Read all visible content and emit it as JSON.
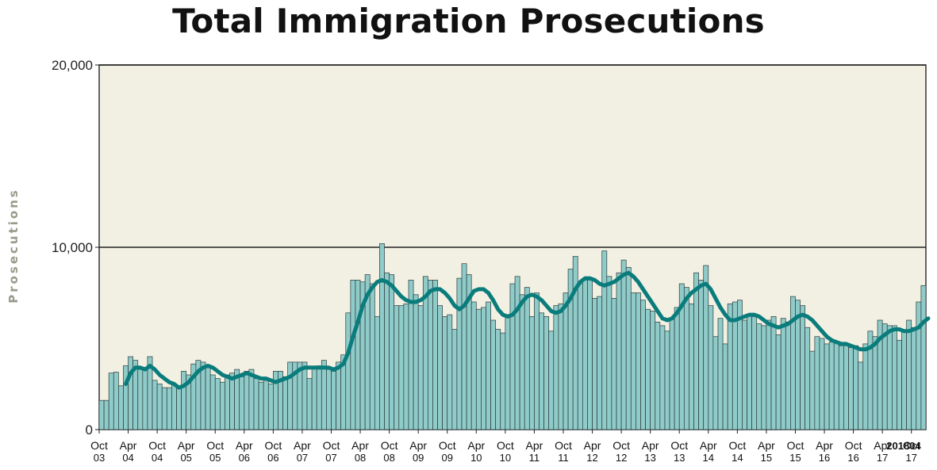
{
  "chart_data": {
    "type": "bar",
    "title": "Total Immigration Prosecutions",
    "ylabel": "Prosecutions",
    "xlabel": "",
    "ylim": [
      0,
      20000
    ],
    "y_ticks": [
      0,
      10000,
      20000
    ],
    "y_tick_labels": [
      "0",
      "10,000",
      "20,000"
    ],
    "grid": "horizontal",
    "colors": {
      "bar_fill": "#8fcbc9",
      "bar_stroke": "#2a3a3a",
      "line": "#0a7c7c",
      "plot_bg": "#f2f0e2"
    },
    "start_month": "Oct 03",
    "x_tick_labels": [
      [
        "Oct",
        "03"
      ],
      [
        "Apr",
        "04"
      ],
      [
        "Oct",
        "04"
      ],
      [
        "Apr",
        "05"
      ],
      [
        "Oct",
        "05"
      ],
      [
        "Apr",
        "06"
      ],
      [
        "Oct",
        "06"
      ],
      [
        "Apr",
        "07"
      ],
      [
        "Oct",
        "07"
      ],
      [
        "Apr",
        "08"
      ],
      [
        "Oct",
        "08"
      ],
      [
        "Apr",
        "09"
      ],
      [
        "Oct",
        "09"
      ],
      [
        "Apr",
        "10"
      ],
      [
        "Oct",
        "10"
      ],
      [
        "Apr",
        "11"
      ],
      [
        "Oct",
        "11"
      ],
      [
        "Apr",
        "12"
      ],
      [
        "Oct",
        "12"
      ],
      [
        "Apr",
        "13"
      ],
      [
        "Oct",
        "13"
      ],
      [
        "Apr",
        "14"
      ],
      [
        "Oct",
        "14"
      ],
      [
        "Apr",
        "15"
      ],
      [
        "Oct",
        "15"
      ],
      [
        "Apr",
        "16"
      ],
      [
        "Oct",
        "16"
      ],
      [
        "Apr",
        "17"
      ],
      [
        "Oct",
        "17"
      ]
    ],
    "overlap_label": "201804",
    "series": [
      {
        "type": "bar",
        "values": [
          1600,
          1600,
          3100,
          3150,
          2400,
          3500,
          4000,
          3800,
          3300,
          3300,
          4000,
          2700,
          2500,
          2300,
          2300,
          2500,
          2300,
          3200,
          3000,
          3600,
          3800,
          3700,
          3500,
          3000,
          2800,
          2600,
          3000,
          3100,
          3300,
          2900,
          3200,
          3300,
          2800,
          2600,
          2700,
          2500,
          3200,
          3200,
          2900,
          3700,
          3700,
          3700,
          3700,
          2800,
          3400,
          3500,
          3800,
          3300,
          3200,
          3700,
          4100,
          6400,
          8200,
          8200,
          8100,
          8500,
          8000,
          6200,
          10200,
          8600,
          8500,
          6800,
          6800,
          6900,
          8200,
          7400,
          6800,
          8400,
          8200,
          8200,
          6800,
          6200,
          6300,
          5500,
          8300,
          9100,
          8500,
          7000,
          6600,
          6700,
          7000,
          6000,
          5500,
          5300,
          6200,
          8000,
          8400,
          7400,
          7800,
          6200,
          7500,
          6400,
          6200,
          5400,
          6800,
          6900,
          7500,
          8800,
          9500,
          8000,
          8200,
          8200,
          7200,
          7300,
          9800,
          8400,
          7200,
          8600,
          9300,
          8900,
          7500,
          7500,
          7100,
          6600,
          6500,
          5900,
          5700,
          5400,
          6100,
          6700,
          8000,
          7800,
          6900,
          8600,
          8200,
          9000,
          6800,
          5100,
          6100,
          4700,
          6900,
          7000,
          7100,
          6000,
          6300,
          6200,
          5800,
          5700,
          6000,
          6200,
          5200,
          6100,
          5900,
          7300,
          7100,
          6800,
          5600,
          4300,
          5100,
          5000,
          4700,
          4800,
          4800,
          4600,
          4600,
          4500,
          4600,
          3700,
          4700,
          5400,
          5100,
          6000,
          5800,
          5700,
          5700,
          4900,
          5400,
          6000,
          5600,
          7000,
          7900
        ]
      },
      {
        "type": "line",
        "values": [
          null,
          null,
          null,
          null,
          null,
          2500,
          3100,
          3400,
          3400,
          3300,
          3500,
          3300,
          3000,
          2800,
          2600,
          2500,
          2300,
          2400,
          2600,
          2900,
          3200,
          3400,
          3500,
          3400,
          3200,
          3000,
          2900,
          2800,
          2900,
          3000,
          3100,
          3000,
          2900,
          2800,
          2800,
          2700,
          2600,
          2700,
          2800,
          2900,
          3100,
          3300,
          3400,
          3400,
          3400,
          3400,
          3400,
          3400,
          3300,
          3400,
          3600,
          4200,
          5100,
          5900,
          6800,
          7400,
          7800,
          8100,
          8200,
          8100,
          7900,
          7600,
          7300,
          7100,
          7000,
          7000,
          7100,
          7300,
          7600,
          7700,
          7700,
          7500,
          7200,
          6800,
          6600,
          6800,
          7200,
          7600,
          7700,
          7700,
          7500,
          7100,
          6600,
          6300,
          6200,
          6300,
          6600,
          7000,
          7300,
          7400,
          7300,
          7100,
          6800,
          6500,
          6400,
          6500,
          6800,
          7200,
          7700,
          8100,
          8300,
          8300,
          8200,
          8000,
          7900,
          8000,
          8100,
          8300,
          8500,
          8600,
          8400,
          8100,
          7700,
          7300,
          6900,
          6500,
          6100,
          6000,
          6100,
          6400,
          6800,
          7200,
          7500,
          7700,
          7900,
          8000,
          7700,
          7200,
          6700,
          6300,
          6000,
          6000,
          6100,
          6200,
          6300,
          6300,
          6200,
          6000,
          5800,
          5700,
          5600,
          5700,
          5800,
          6000,
          6200,
          6300,
          6200,
          6000,
          5700,
          5400,
          5100,
          4900,
          4800,
          4700,
          4700,
          4600,
          4500,
          4400,
          4400,
          4500,
          4700,
          5000,
          5200,
          5400,
          5500,
          5500,
          5400,
          5400,
          5500,
          5600,
          5900,
          6100
        ]
      }
    ]
  }
}
